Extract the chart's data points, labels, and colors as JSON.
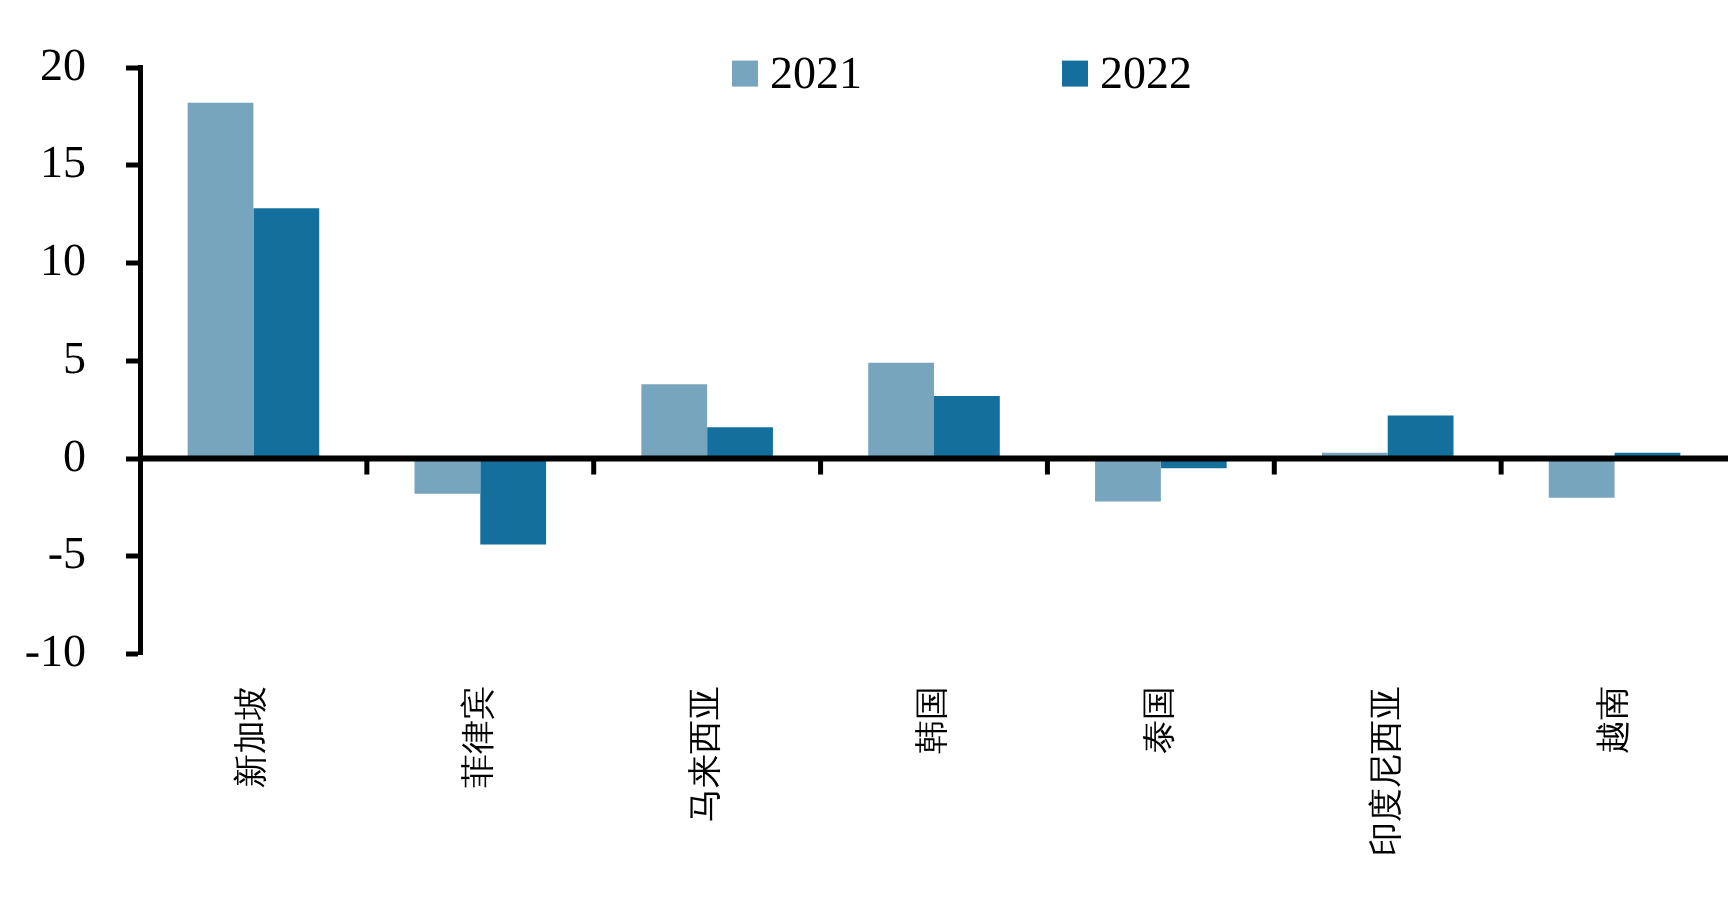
{
  "chart_data": {
    "type": "bar",
    "categories": [
      "新加坡",
      "菲律宾",
      "马来西亚",
      "韩国",
      "泰国",
      "印度尼西亚",
      "越南"
    ],
    "series": [
      {
        "name": "2021",
        "color": "#76a5bd",
        "values": [
          18.2,
          -1.8,
          3.8,
          4.9,
          -2.2,
          0.3,
          -2.0
        ]
      },
      {
        "name": "2022",
        "color": "#156f9c",
        "values": [
          12.8,
          -4.4,
          1.6,
          3.2,
          -0.5,
          2.2,
          0.3
        ]
      }
    ],
    "ylim": [
      -10,
      20
    ],
    "yticks": [
      -10,
      -5,
      0,
      5,
      10,
      15,
      20
    ],
    "legend": "top"
  }
}
